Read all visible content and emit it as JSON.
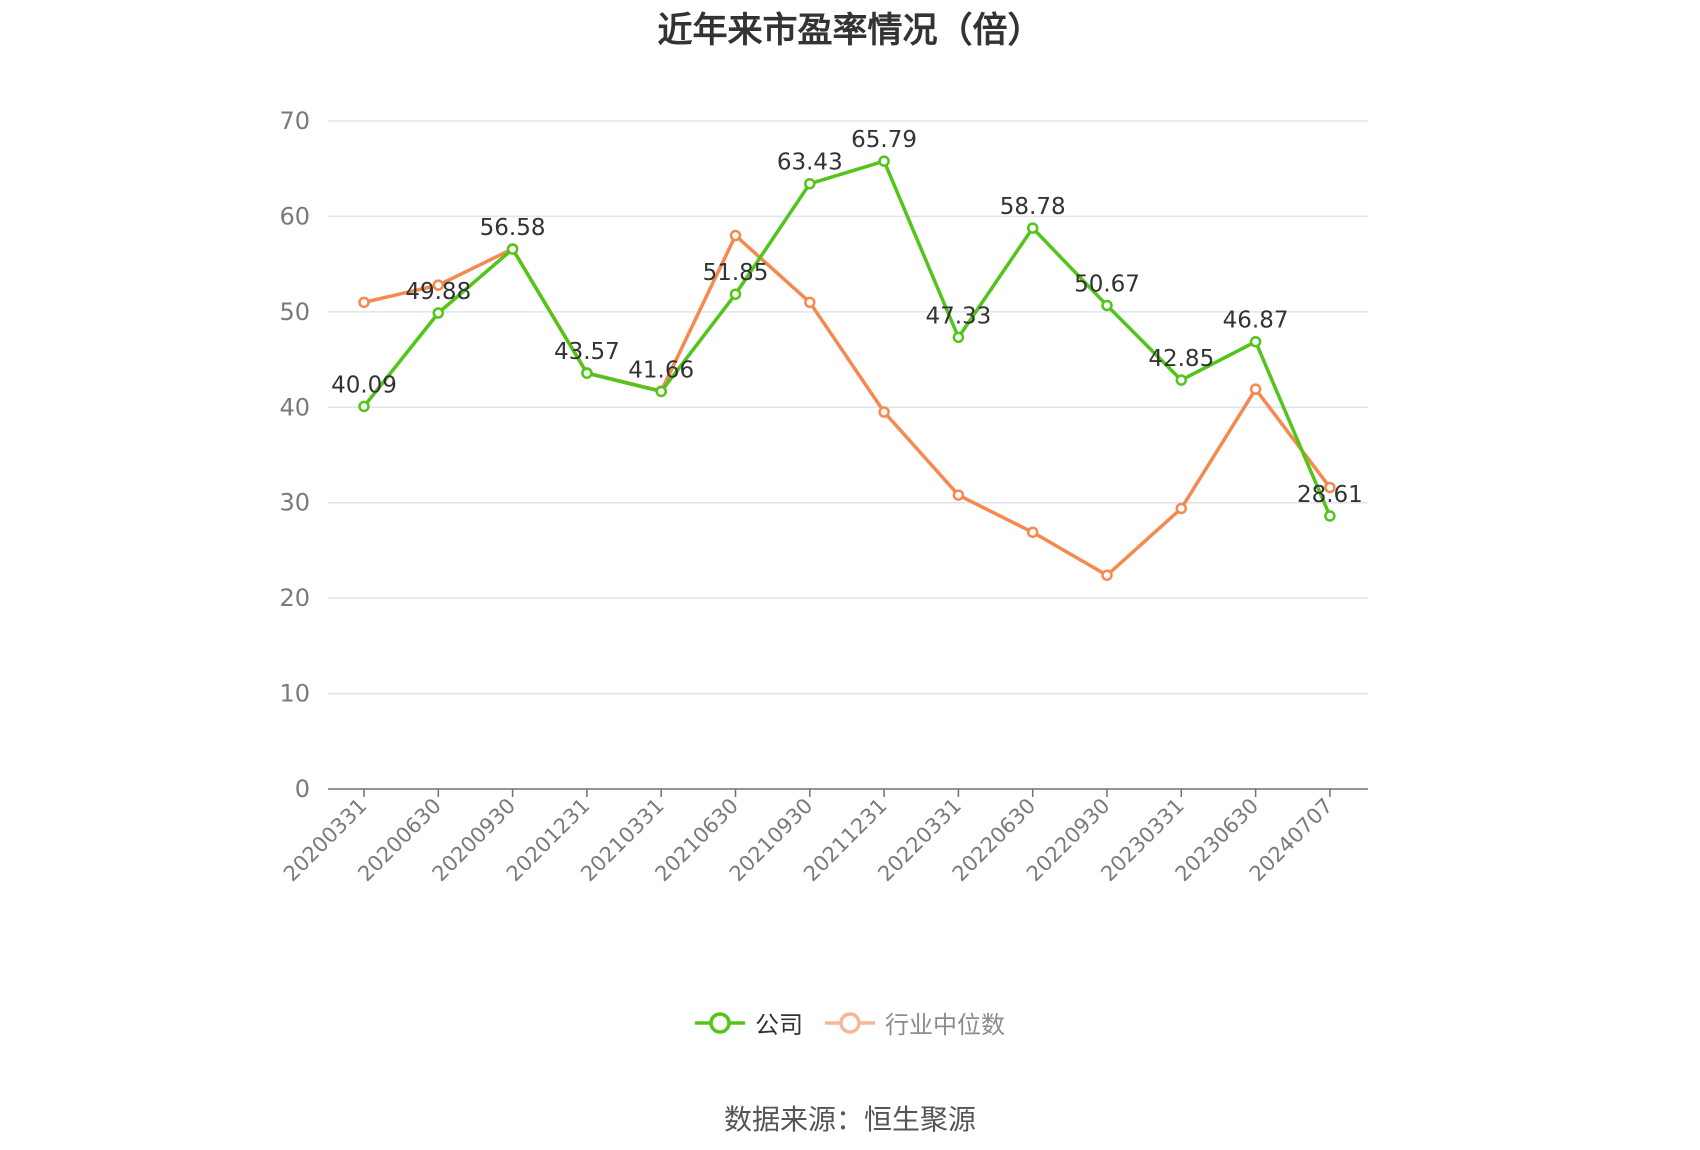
{
  "chart_data": {
    "type": "line",
    "title": "近年来市盈率情况（倍）",
    "categories": [
      "20200331",
      "20200630",
      "20200930",
      "20201231",
      "20210331",
      "20210630",
      "20210930",
      "20211231",
      "20220331",
      "20220630",
      "20220930",
      "20230331",
      "20230630",
      "20240707"
    ],
    "series": [
      {
        "name": "公司",
        "color": "#52c41a",
        "values": [
          40.09,
          49.88,
          56.58,
          43.57,
          41.66,
          51.85,
          63.43,
          65.79,
          47.33,
          58.78,
          50.67,
          42.85,
          46.87,
          28.61
        ],
        "labels": [
          "40.09",
          "49.88",
          "56.58",
          "43.57",
          "41.66",
          "51.85",
          "63.43",
          "65.79",
          "47.33",
          "58.78",
          "50.67",
          "42.85",
          "46.87",
          "28.61"
        ]
      },
      {
        "name": "行业中位数",
        "color": "#f5894f",
        "values": [
          51.0,
          52.8,
          56.6,
          43.6,
          41.7,
          58.0,
          51.0,
          39.5,
          30.8,
          26.9,
          22.4,
          29.4,
          41.9,
          31.6
        ]
      }
    ],
    "ylim": [
      0,
      70
    ],
    "yticks": [
      0,
      10,
      20,
      30,
      40,
      50,
      60,
      70
    ],
    "grid": true,
    "legend_position": "bottom-center"
  },
  "source_note": "数据来源：恒生聚源"
}
